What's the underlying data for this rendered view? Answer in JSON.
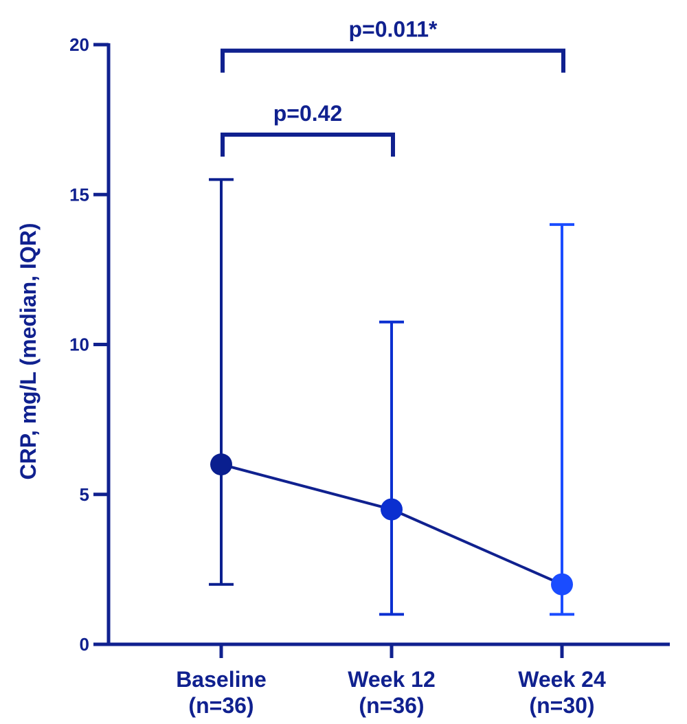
{
  "chart_data": {
    "type": "line",
    "ylabel": "CRP, mg/L (median, IQR)",
    "ylim": [
      0,
      20
    ],
    "yticks": [
      0,
      5,
      10,
      15,
      20
    ],
    "categories": [
      {
        "line1": "Baseline",
        "line2": "(n=36)"
      },
      {
        "line1": "Week 12",
        "line2": "(n=36)"
      },
      {
        "line1": "Week 24",
        "line2": "(n=30)"
      }
    ],
    "points": [
      {
        "median": 6.0,
        "q1": 2.0,
        "q3": 15.5,
        "color": "#0a1f8f"
      },
      {
        "median": 4.5,
        "q1": 1.0,
        "q3": 10.75,
        "color": "#0b2fd0"
      },
      {
        "median": 2.0,
        "q1": 1.0,
        "q3": 14.0,
        "color": "#1a4cff"
      }
    ],
    "annotations": [
      {
        "label": "p=0.42",
        "from": 0,
        "to": 1,
        "y": 17.0
      },
      {
        "label": "p=0.011*",
        "from": 0,
        "to": 2,
        "y": 19.8
      }
    ],
    "colors": {
      "axis": "#10218f",
      "line": "#10218f"
    }
  }
}
